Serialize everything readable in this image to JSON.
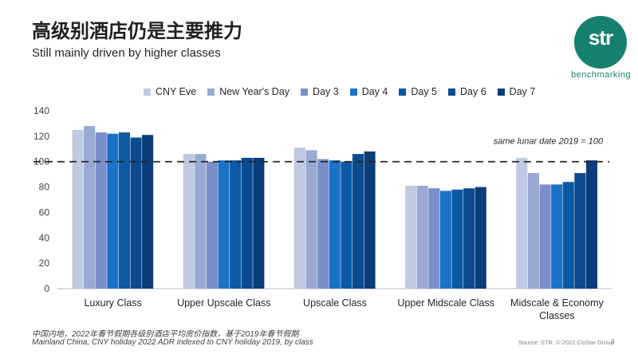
{
  "title": "高级别酒店仍是主要推力",
  "subtitle": "Still mainly driven by higher classes",
  "logo": {
    "text": "str",
    "subtext": "benchmarking",
    "color": "#16806e"
  },
  "footnote_cn": "中国内地，2022年春节假期各级别酒店平均房价指数，基于2019年春节假期",
  "footnote_en": "Mainland China, CNY holiday 2022 ADR indexed to CNY holiday 2019, by class",
  "source": "Source: STR. © 2022 CoStar Group",
  "page_number": "3",
  "chart_data": {
    "type": "bar",
    "categories": [
      "Luxury Class",
      "Upper Upscale Class",
      "Upscale Class",
      "Upper Midscale Class",
      "Midscale & Economy Classes"
    ],
    "series": [
      {
        "name": "CNY Eve",
        "color": "#bfc9e0",
        "values": [
          125,
          106,
          111,
          81,
          103
        ]
      },
      {
        "name": "New Year's Day",
        "color": "#99a9d2",
        "values": [
          128,
          106,
          109,
          81,
          91
        ]
      },
      {
        "name": "Day 3",
        "color": "#7a8fc9",
        "values": [
          123,
          100,
          102,
          79,
          82
        ]
      },
      {
        "name": "Day 4",
        "color": "#1a73c7",
        "values": [
          122,
          101,
          101,
          77,
          82
        ]
      },
      {
        "name": "Day 5",
        "color": "#0c5aa6",
        "values": [
          123,
          101,
          100,
          78,
          84
        ]
      },
      {
        "name": "Day 6",
        "color": "#0c4a90",
        "values": [
          119,
          103,
          106,
          79,
          91
        ]
      },
      {
        "name": "Day 7",
        "color": "#0b3d7a",
        "values": [
          121,
          103,
          108,
          80,
          101
        ]
      }
    ],
    "ylim": [
      0,
      140
    ],
    "yticks": [
      0,
      20,
      40,
      60,
      80,
      100,
      120,
      140
    ],
    "reference_line": {
      "value": 100,
      "label": "same lunar date 2019 = 100"
    },
    "legend_position": "top",
    "grid": false
  }
}
